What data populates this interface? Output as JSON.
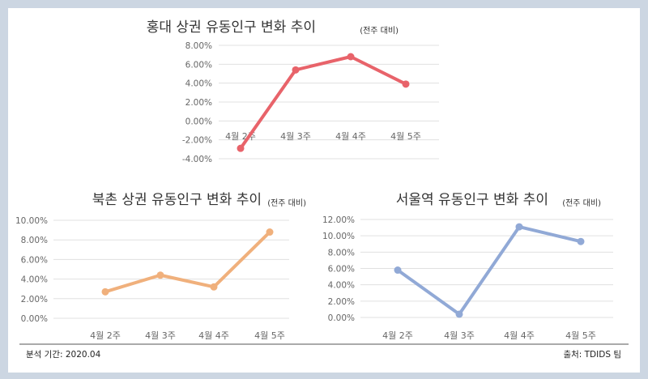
{
  "footer": {
    "period": "분석 기간: 2020.04",
    "source": "출처: TDIDS 팀"
  },
  "chart_data": [
    {
      "type": "line",
      "title": "홍대 상권 유동인구 변화 추이",
      "subtitle": "(전주 대비)",
      "categories": [
        "4월 2주",
        "4월 3주",
        "4월 4주",
        "4월 5주"
      ],
      "values": [
        -2.9,
        5.4,
        6.8,
        3.9
      ],
      "ylim": [
        -4,
        8
      ],
      "yticks": [
        "8.00%",
        "6.00%",
        "4.00%",
        "2.00%",
        "0.00%",
        "-2.00%",
        "-4.00%"
      ],
      "color": "#e8636a",
      "grid": true
    },
    {
      "type": "line",
      "title": "북촌 상권 유동인구 변화 추이",
      "subtitle": "(전주 대비)",
      "categories": [
        "4월 2주",
        "4월 3주",
        "4월 4주",
        "4월 5주"
      ],
      "values": [
        2.7,
        4.4,
        3.2,
        8.8
      ],
      "ylim": [
        0,
        10
      ],
      "yticks": [
        "10.00%",
        "8.00%",
        "6.00%",
        "4.00%",
        "2.00%",
        "0.00%"
      ],
      "color": "#f0b07c",
      "grid": true
    },
    {
      "type": "line",
      "title": "서울역 유동인구 변화 추이",
      "subtitle": "(전주 대비)",
      "categories": [
        "4월 2주",
        "4월 3주",
        "4월 4주",
        "4월 5주"
      ],
      "values": [
        5.8,
        0.4,
        11.1,
        9.3
      ],
      "ylim": [
        0,
        12
      ],
      "yticks": [
        "12.00%",
        "10.00%",
        "8.00%",
        "6.00%",
        "4.00%",
        "2.00%",
        "0.00%"
      ],
      "color": "#91a9d6",
      "grid": true
    }
  ]
}
